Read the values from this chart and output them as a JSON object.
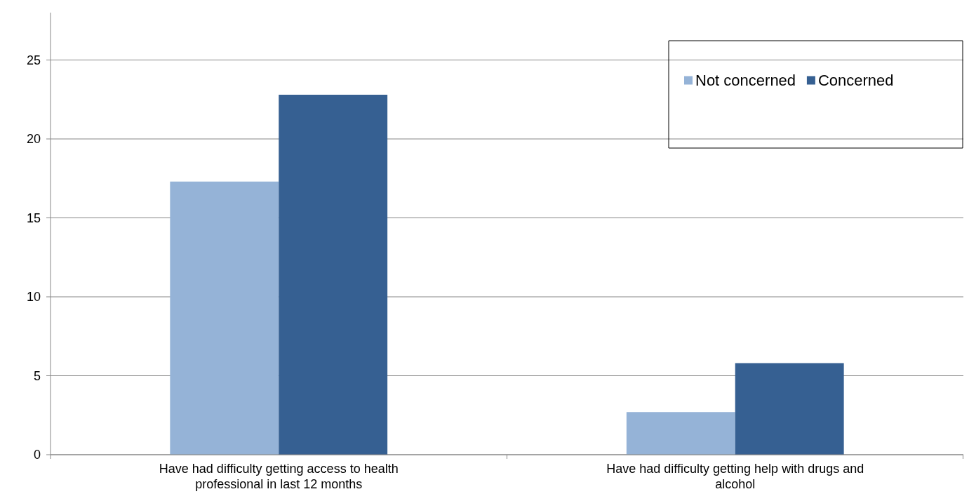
{
  "chart_data": {
    "type": "bar",
    "categories": [
      "Have had difficulty getting access to health professional in last 12 months",
      "Have had difficulty getting help with drugs and alcohol"
    ],
    "series": [
      {
        "name": "Not concerned",
        "color": "#95b3d7",
        "values": [
          17.3,
          2.7
        ]
      },
      {
        "name": "Concerned",
        "color": "#366092",
        "values": [
          22.8,
          5.8
        ]
      }
    ],
    "ylim": [
      0,
      28
    ],
    "yticks": [
      0,
      5,
      10,
      15,
      20,
      25
    ],
    "grid": "y",
    "legend": "top right"
  }
}
